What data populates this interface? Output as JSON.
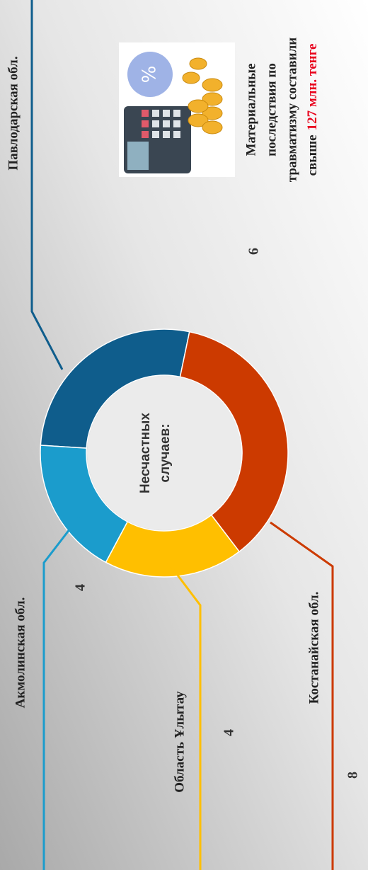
{
  "chart_data": {
    "type": "pie",
    "donut": true,
    "center_text": [
      "Несчастных",
      "случаев:"
    ],
    "categories": [
      "Павлодарская обл.",
      "Костанайская обл.",
      "Область Ұлытау",
      "Акмолинская обл."
    ],
    "values": [
      6,
      8,
      4,
      4
    ],
    "colors": [
      "#0f5d8c",
      "#cc3a00",
      "#ffbf00",
      "#1b9ccc"
    ]
  },
  "note": {
    "lines": [
      "Материальные",
      "последствия по",
      "травматизму составили",
      "свыше"
    ],
    "highlight": "127 млн. тенге",
    "highlight_color": "#e8001c"
  }
}
